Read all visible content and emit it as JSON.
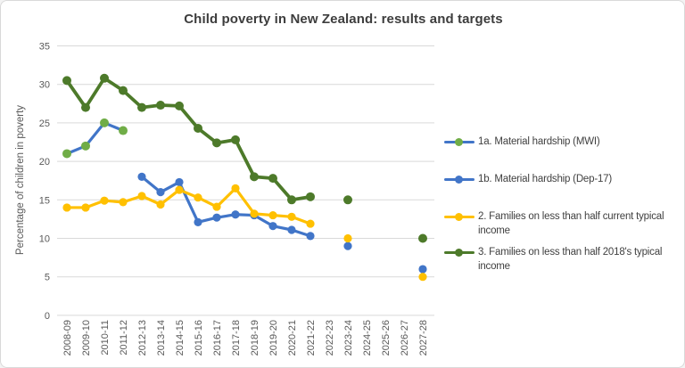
{
  "window": {
    "title": "Child poverty in New Zealand: results and targets"
  },
  "colors": {
    "background": "#ffffff",
    "frame_border": "#d9d9d9",
    "gridline": "#d9d9d9",
    "title_text": "#3d3d3d",
    "axis_text": "#595959",
    "legend_text": "#404040",
    "blue": "#4175c8",
    "green": "#70ad47",
    "yellow": "#ffc000",
    "dark_green": "#4d7a2a"
  },
  "chart_data": {
    "type": "line",
    "title": "Child poverty in New Zealand: results and targets",
    "xlabel": "",
    "ylabel": "Percentage of children in poverty",
    "ylim": [
      0,
      35
    ],
    "yticks": [
      0,
      5,
      10,
      15,
      20,
      25,
      30,
      35
    ],
    "grid": true,
    "legend_position": "right",
    "categories": [
      "2008-09",
      "2009-10",
      "2010-11",
      "2011-12",
      "2012-13",
      "2013-14",
      "2014-15",
      "2015-16",
      "2016-17",
      "2017-18",
      "2018-19",
      "2019-20",
      "2020-21",
      "2021-22",
      "2022-23",
      "2023-24",
      "2024-25",
      "2025-26",
      "2026-27",
      "2027-28"
    ],
    "series": [
      {
        "name": "1a. Material hardship (MWI)",
        "line_color": "#4175c8",
        "marker_color": "#70ad47",
        "values": [
          21,
          22,
          25,
          24,
          null,
          null,
          null,
          null,
          null,
          null,
          null,
          null,
          null,
          null,
          null,
          null,
          null,
          null,
          null,
          null
        ]
      },
      {
        "name": "1b. Material hardship (Dep-17)",
        "line_color": "#4175c8",
        "marker_color": "#4175c8",
        "values": [
          null,
          null,
          null,
          null,
          18,
          16,
          17.3,
          12.1,
          12.7,
          13.1,
          13,
          11.6,
          11.1,
          10.3,
          null,
          9,
          null,
          null,
          null,
          6
        ]
      },
      {
        "name": "2. Families on less than half current typical income",
        "line_color": "#ffc000",
        "marker_color": "#ffc000",
        "values": [
          14,
          14,
          14.9,
          14.7,
          15.5,
          14.4,
          16.3,
          15.3,
          14.1,
          16.5,
          13.2,
          13,
          12.8,
          11.9,
          null,
          10,
          null,
          null,
          null,
          5
        ]
      },
      {
        "name": "3. Families on less than half 2018's typical income",
        "line_color": "#4d7a2a",
        "marker_color": "#4d7a2a",
        "values": [
          30.5,
          27,
          30.8,
          29.2,
          27,
          27.3,
          27.2,
          24.3,
          22.4,
          22.8,
          18,
          17.8,
          15,
          15.4,
          null,
          15,
          null,
          null,
          null,
          10
        ]
      }
    ]
  }
}
